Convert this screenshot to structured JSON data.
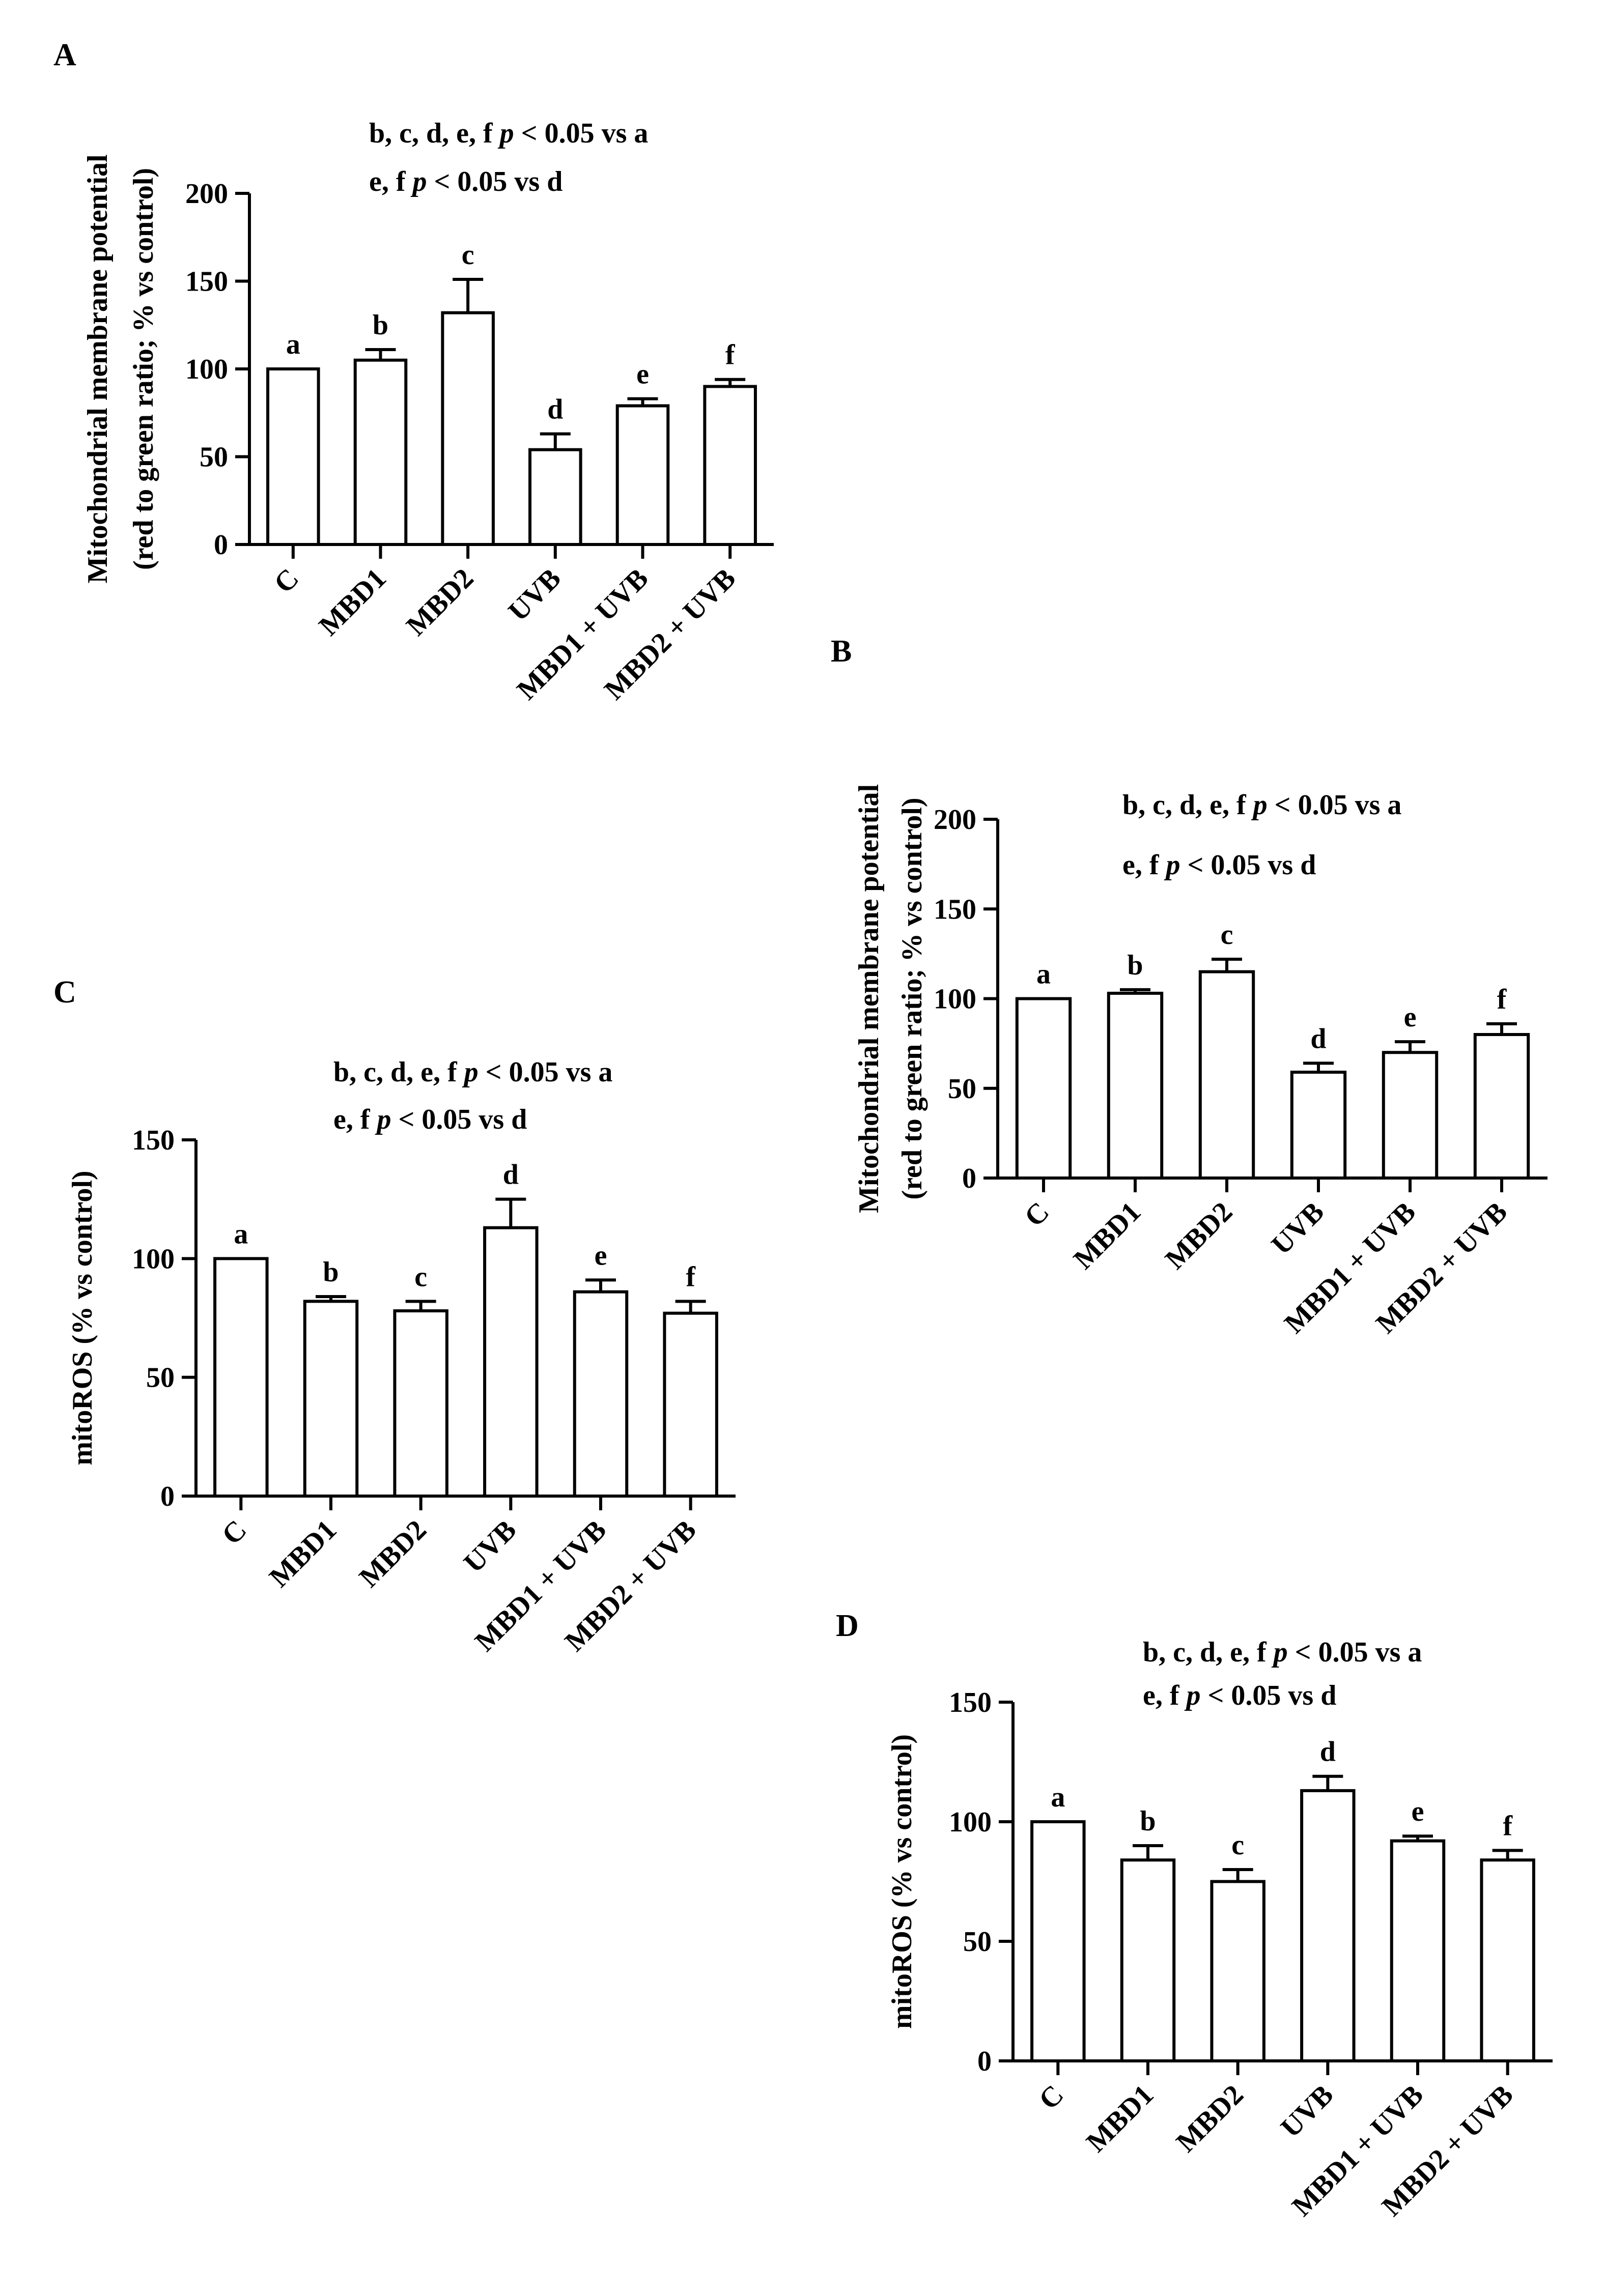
{
  "chart_data": [
    {
      "panel": "A",
      "type": "bar",
      "categories": [
        "C",
        "MBD1",
        "MBD2",
        "UVB",
        "MBD1 + UVB",
        "MBD2 + UVB"
      ],
      "values": [
        100,
        105,
        132,
        54,
        79,
        90
      ],
      "errors": [
        0,
        6,
        19,
        9,
        4,
        4
      ],
      "letters": [
        "a",
        "b",
        "c",
        "d",
        "e",
        "f"
      ],
      "ylabel_lines": [
        "Mitochondrial membrane potential",
        "(red to green ratio; % vs control)"
      ],
      "ylim": [
        0,
        200
      ],
      "yticks": [
        0,
        50,
        100,
        150,
        200
      ],
      "annotations": [
        {
          "pre": "b, c, d, e, f ",
          "p": "p",
          "post": " < 0.05 vs a"
        },
        {
          "pre": "e, f  ",
          "p": "p",
          "post": " < 0.05 vs d"
        }
      ]
    },
    {
      "panel": "B",
      "type": "bar",
      "categories": [
        "C",
        "MBD1",
        "MBD2",
        "UVB",
        "MBD1 + UVB",
        "MBD2 + UVB"
      ],
      "values": [
        100,
        103,
        115,
        59,
        70,
        80
      ],
      "errors": [
        0,
        2,
        7,
        5,
        6,
        6
      ],
      "letters": [
        "a",
        "b",
        "c",
        "d",
        "e",
        "f"
      ],
      "ylabel_lines": [
        "Mitochondrial membrane potential",
        "(red to green ratio; % vs control)"
      ],
      "ylim": [
        0,
        200
      ],
      "yticks": [
        0,
        50,
        100,
        150,
        200
      ],
      "annotations": [
        {
          "pre": "b, c, d, e, f ",
          "p": "p",
          "post": " < 0.05 vs a"
        },
        {
          "pre": "e, f  ",
          "p": "p",
          "post": " < 0.05 vs d"
        }
      ]
    },
    {
      "panel": "C",
      "type": "bar",
      "categories": [
        "C",
        "MBD1",
        "MBD2",
        "UVB",
        "MBD1 + UVB",
        "MBD2 + UVB"
      ],
      "values": [
        100,
        82,
        78,
        113,
        86,
        77
      ],
      "errors": [
        0,
        2,
        4,
        12,
        5,
        5
      ],
      "letters": [
        "a",
        "b",
        "c",
        "d",
        "e",
        "f"
      ],
      "ylabel_lines": [
        "mitoROS (% vs control)"
      ],
      "ylim": [
        0,
        150
      ],
      "yticks": [
        0,
        50,
        100,
        150
      ],
      "annotations": [
        {
          "pre": "b, c, d, e, f ",
          "p": "p",
          "post": " < 0.05 vs a"
        },
        {
          "pre": "e, f  ",
          "p": "p",
          "post": " < 0.05 vs d"
        }
      ]
    },
    {
      "panel": "D",
      "type": "bar",
      "categories": [
        "C",
        "MBD1",
        "MBD2",
        "UVB",
        "MBD1 + UVB",
        "MBD2 + UVB"
      ],
      "values": [
        100,
        84,
        75,
        113,
        92,
        84
      ],
      "errors": [
        0,
        6,
        5,
        6,
        2,
        4
      ],
      "letters": [
        "a",
        "b",
        "c",
        "d",
        "e",
        "f"
      ],
      "ylabel_lines": [
        "mitoROS (% vs control)"
      ],
      "ylim": [
        0,
        150
      ],
      "yticks": [
        0,
        50,
        100,
        150
      ],
      "annotations": [
        {
          "pre": "b, c, d, e, f ",
          "p": "p",
          "post": " < 0.05 vs a"
        },
        {
          "pre": "e, f  ",
          "p": "p",
          "post": " < 0.05 vs d"
        }
      ]
    }
  ]
}
